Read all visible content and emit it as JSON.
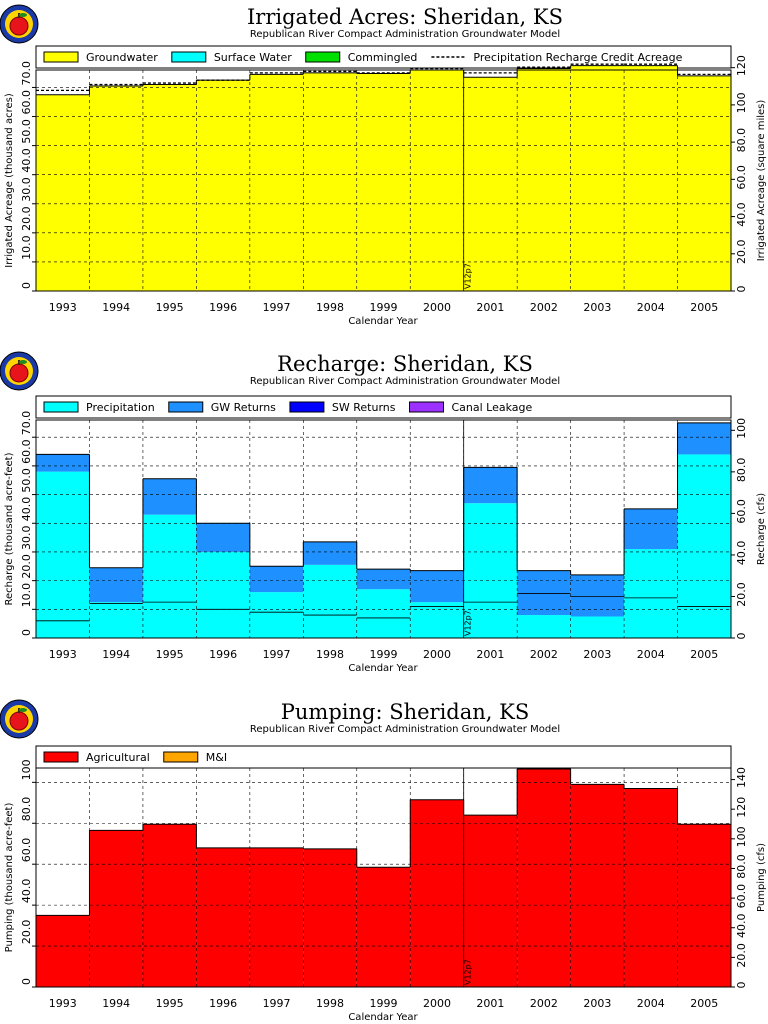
{
  "colors": {
    "groundwater": "#ffff00",
    "surface_water": "#00ffff",
    "commingled": "#00e000",
    "precipitation": "#00ffff",
    "gw_returns": "#1e90ff",
    "sw_returns": "#0000ff",
    "canal_leakage": "#9b30ff",
    "agricultural": "#ff0000",
    "mi": "#ffa500",
    "logo_red": "#e8141b",
    "logo_yellow": "#ffd400",
    "logo_blue": "#1a3aa8"
  },
  "chart_data": [
    {
      "type": "bar",
      "title": "Irrigated Acres: Sheridan, KS",
      "subtitle": "Republican River Compact Administration Groundwater Model",
      "xlabel": "Calendar Year",
      "ylabel": "Irrigated Acreage (thousand acres)",
      "y2label": "Irrigated Acreage (square miles)",
      "categories": [
        "1993",
        "1994",
        "1995",
        "1996",
        "1997",
        "1998",
        "1999",
        "2000",
        "2001",
        "2002",
        "2003",
        "2004",
        "2005"
      ],
      "ylim": [
        0,
        76
      ],
      "yticks": [
        "0",
        "10.0",
        "20.0",
        "30.0",
        "40.0",
        "50.0",
        "60.0",
        "70.0"
      ],
      "y2ticks": [
        "0",
        "20.0",
        "40.0",
        "60.0",
        "80.0",
        "100",
        "120"
      ],
      "y2lim": [
        0,
        118.75
      ],
      "grid": true,
      "legend_position": "top",
      "marker_label": "V12p7",
      "series": [
        {
          "name": "Groundwater",
          "color_key": "groundwater",
          "values": [
            67.5,
            70.5,
            71,
            72.5,
            74.5,
            75,
            74.8,
            76,
            73.5,
            76.5,
            77.5,
            77.5,
            74
          ]
        },
        {
          "name": "Surface Water",
          "color_key": "surface_water",
          "values": [
            0,
            0,
            0,
            0,
            0,
            0,
            0,
            0,
            0,
            0,
            0,
            0,
            0
          ]
        },
        {
          "name": "Commingled",
          "color_key": "commingled",
          "values": [
            0,
            0,
            0,
            0,
            0,
            0,
            0,
            0,
            0,
            0,
            0,
            0,
            0
          ]
        }
      ],
      "line": {
        "name": "Precipitation Recharge Credit Acreage",
        "values": [
          69,
          71,
          71.5,
          72.5,
          75,
          75.5,
          75,
          76.5,
          75,
          77,
          78,
          78,
          74.5
        ]
      }
    },
    {
      "type": "bar",
      "title": "Recharge: Sheridan, KS",
      "subtitle": "Republican River Compact Administration Groundwater Model",
      "xlabel": "Calendar Year",
      "ylabel": "Recharge (thousand acre-feet)",
      "y2label": "Recharge (cfs)",
      "categories": [
        "1993",
        "1994",
        "1995",
        "1996",
        "1997",
        "1998",
        "1999",
        "2000",
        "2001",
        "2002",
        "2003",
        "2004",
        "2005"
      ],
      "ylim": [
        0,
        76
      ],
      "yticks": [
        "0",
        "10.0",
        "20.0",
        "30.0",
        "40.0",
        "50.0",
        "60.0",
        "70.0"
      ],
      "y2ticks": [
        "0",
        "20.0",
        "40.0",
        "60.0",
        "80.0",
        "100"
      ],
      "y2lim": [
        0,
        104.97
      ],
      "grid": true,
      "legend_position": "top",
      "marker_label": "V12p7",
      "series": [
        {
          "name": "Precipitation",
          "color_key": "precipitation",
          "values": [
            58,
            12.5,
            43,
            30,
            16,
            25.5,
            17,
            12.5,
            47,
            8,
            7.5,
            31,
            64
          ]
        },
        {
          "name": "GW Returns",
          "color_key": "gw_returns",
          "values": [
            6,
            12,
            12.5,
            10,
            9,
            8,
            7,
            11,
            12.5,
            15.5,
            14.5,
            14,
            11
          ]
        },
        {
          "name": "SW Returns",
          "color_key": "sw_returns",
          "values": [
            0,
            0,
            0,
            0,
            0,
            0,
            0,
            0,
            0,
            0,
            0,
            0,
            0
          ]
        },
        {
          "name": "Canal Leakage",
          "color_key": "canal_leakage",
          "values": [
            0,
            0,
            0,
            0,
            0,
            0,
            0,
            0,
            0,
            0,
            0,
            0,
            0
          ]
        }
      ]
    },
    {
      "type": "bar",
      "title": "Pumping: Sheridan, KS",
      "subtitle": "Republican River Compact Administration Groundwater Model",
      "xlabel": "Calendar Year",
      "ylabel": "Pumping (thousand acre-feet)",
      "y2label": "Pumping (cfs)",
      "categories": [
        "1993",
        "1994",
        "1995",
        "1996",
        "1997",
        "1998",
        "1999",
        "2000",
        "2001",
        "2002",
        "2003",
        "2004",
        "2005"
      ],
      "ylim": [
        0,
        107
      ],
      "yticks": [
        "0",
        "20.0",
        "40.0",
        "60.0",
        "80.0",
        "100"
      ],
      "y2ticks": [
        "0",
        "20.0",
        "40.0",
        "60.0",
        "80.0",
        "100",
        "120",
        "140"
      ],
      "y2lim": [
        0,
        147.8
      ],
      "grid": true,
      "legend_position": "top",
      "marker_label": "V12p7",
      "series": [
        {
          "name": "Agricultural",
          "color_key": "agricultural",
          "values": [
            35,
            76.5,
            79.5,
            68,
            68,
            67.5,
            58.5,
            91.5,
            84,
            106.5,
            99,
            97,
            79.5
          ]
        },
        {
          "name": "M&I",
          "color_key": "mi",
          "values": [
            0,
            0,
            0,
            0,
            0,
            0,
            0,
            0,
            0,
            0,
            0,
            0,
            0
          ]
        }
      ]
    }
  ]
}
